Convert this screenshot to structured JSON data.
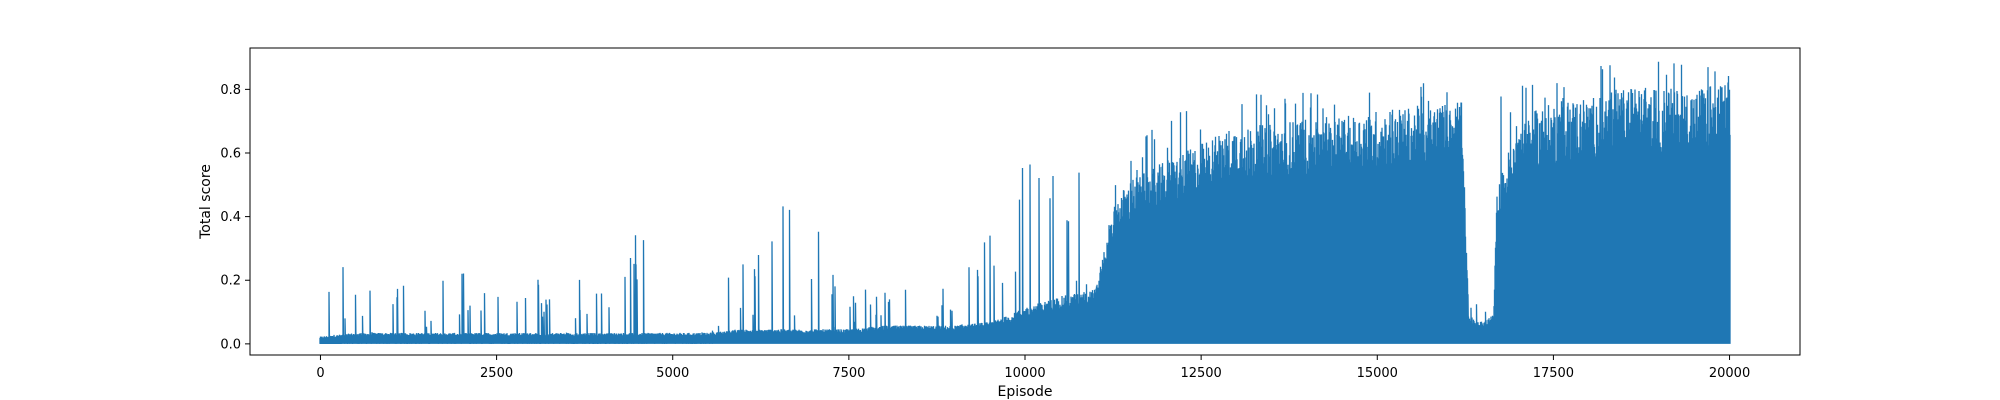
{
  "chart_data": {
    "type": "line",
    "title": "",
    "xlabel": "Episode",
    "ylabel": "Total score",
    "xlim": [
      -1000,
      21000
    ],
    "ylim": [
      -0.035,
      0.93
    ],
    "x_ticks": [
      0,
      2500,
      5000,
      7500,
      10000,
      12500,
      15000,
      17500,
      20000
    ],
    "x_tick_labels": [
      "0",
      "2500",
      "5000",
      "7500",
      "10000",
      "12500",
      "15000",
      "17500",
      "20000"
    ],
    "y_ticks": [
      0.0,
      0.2,
      0.4,
      0.6,
      0.8
    ],
    "y_tick_labels": [
      "0.0",
      "0.2",
      "0.4",
      "0.6",
      "0.8"
    ],
    "grid": false,
    "legend": "none",
    "line_color": "#1f77b4",
    "series": [
      {
        "x": [
          0,
          500,
          1000,
          1500,
          2000,
          2500,
          3000,
          3500,
          4000,
          4500,
          5000,
          5500,
          6000,
          6500,
          7000,
          7500,
          8000,
          8500,
          9000,
          9500,
          9800,
          10000,
          10500,
          11000,
          11300,
          11500,
          12000,
          12500,
          13000,
          13500,
          14000,
          14500,
          15000,
          15500,
          16000,
          16200,
          16300,
          16500,
          16650,
          16700,
          17000,
          17500,
          18000,
          18500,
          19000,
          19500,
          20000
        ],
        "y_min": [
          0,
          0,
          0,
          0,
          0,
          0,
          0,
          0,
          0,
          0,
          0,
          0,
          0,
          0,
          0,
          0,
          0,
          0,
          0,
          0,
          0,
          0,
          0,
          0,
          0,
          0,
          0,
          0,
          0,
          0,
          0,
          0,
          0,
          0,
          0,
          0,
          0,
          0,
          0,
          0,
          0,
          0,
          0,
          0,
          0,
          0,
          0
        ],
        "y_max": [
          0.19,
          0.27,
          0.23,
          0.22,
          0.22,
          0.24,
          0.2,
          0.21,
          0.2,
          0.35,
          0.21,
          0.18,
          0.25,
          0.44,
          0.38,
          0.18,
          0.16,
          0.18,
          0.2,
          0.34,
          0.38,
          0.59,
          0.66,
          0.52,
          0.62,
          0.6,
          0.72,
          0.74,
          0.79,
          0.78,
          0.79,
          0.77,
          0.81,
          0.81,
          0.84,
          0.82,
          0.1,
          0.19,
          0.27,
          0.77,
          0.81,
          0.82,
          0.87,
          0.88,
          0.89,
          0.87,
          0.87
        ],
        "envelope_min": [
          0.02,
          0.03,
          0.03,
          0.03,
          0.03,
          0.03,
          0.03,
          0.03,
          0.03,
          0.03,
          0.03,
          0.03,
          0.04,
          0.04,
          0.04,
          0.04,
          0.05,
          0.05,
          0.05,
          0.06,
          0.08,
          0.1,
          0.13,
          0.15,
          0.4,
          0.45,
          0.5,
          0.55,
          0.6,
          0.6,
          0.62,
          0.62,
          0.64,
          0.65,
          0.66,
          0.66,
          0.07,
          0.06,
          0.08,
          0.42,
          0.62,
          0.66,
          0.68,
          0.7,
          0.7,
          0.7,
          0.72
        ]
      }
    ]
  }
}
